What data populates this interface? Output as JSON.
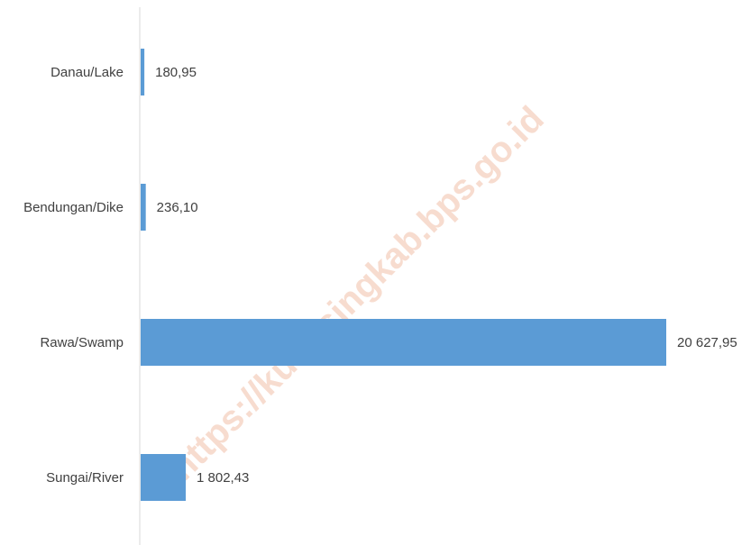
{
  "chart_data": {
    "type": "bar",
    "orientation": "horizontal",
    "categories": [
      "Danau/Lake",
      "Bendungan/Dike",
      "Rawa/Swamp",
      "Sungai/River"
    ],
    "values": [
      180.95,
      236.1,
      20627.95,
      1802.43
    ],
    "value_labels": [
      "180,95",
      "236,10",
      "20 627,95",
      "1 802,43"
    ],
    "xlim": [
      0,
      20627.95
    ],
    "grid": false,
    "colors": {
      "bar": "#5b9bd5",
      "axis": "#d9d9d9",
      "text": "#404040"
    }
  },
  "watermark": "https://kuansingkab.bps.go.id"
}
